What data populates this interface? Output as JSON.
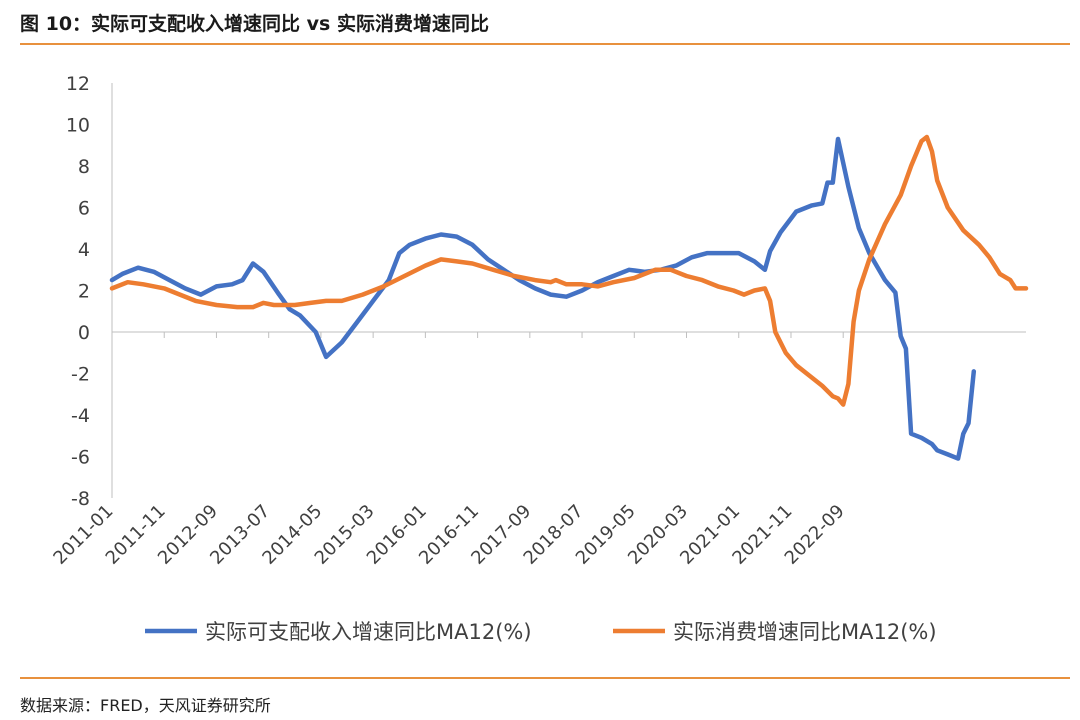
{
  "header": {
    "title": "图 10：实际可支配收入增速同比  vs  实际消费增速同比"
  },
  "footer": {
    "source": "数据来源：FRED，天风证券研究所"
  },
  "chart_data": {
    "type": "line",
    "x_tick_labels": [
      "2011-01",
      "2011-11",
      "2012-09",
      "2013-07",
      "2014-05",
      "2015-03",
      "2016-01",
      "2016-11",
      "2017-09",
      "2018-07",
      "2019-05",
      "2020-03",
      "2021-01",
      "2021-11",
      "2022-09"
    ],
    "ylim": [
      -8,
      12
    ],
    "yticks": [
      -8,
      -6,
      -4,
      -2,
      0,
      2,
      4,
      6,
      8,
      10,
      12
    ],
    "grid": false,
    "legend_position": "bottom",
    "colors": {
      "income": "#4472C4",
      "consumption": "#ED7D31",
      "accent": "#E8913D"
    },
    "series": [
      {
        "name": "实际可支配收入增速同比MA12(%)",
        "key": "income",
        "points": [
          [
            "2011-01",
            2.5
          ],
          [
            "2011-03",
            2.8
          ],
          [
            "2011-06",
            3.1
          ],
          [
            "2011-09",
            2.9
          ],
          [
            "2011-12",
            2.5
          ],
          [
            "2012-03",
            2.1
          ],
          [
            "2012-06",
            1.8
          ],
          [
            "2012-09",
            2.2
          ],
          [
            "2012-12",
            2.3
          ],
          [
            "2013-02",
            2.5
          ],
          [
            "2013-04",
            3.3
          ],
          [
            "2013-06",
            2.9
          ],
          [
            "2013-09",
            1.8
          ],
          [
            "2013-11",
            1.1
          ],
          [
            "2014-01",
            0.8
          ],
          [
            "2014-04",
            0.0
          ],
          [
            "2014-06",
            -1.2
          ],
          [
            "2014-09",
            -0.5
          ],
          [
            "2014-12",
            0.5
          ],
          [
            "2015-03",
            1.5
          ],
          [
            "2015-06",
            2.5
          ],
          [
            "2015-08",
            3.8
          ],
          [
            "2015-10",
            4.2
          ],
          [
            "2016-01",
            4.5
          ],
          [
            "2016-04",
            4.7
          ],
          [
            "2016-07",
            4.6
          ],
          [
            "2016-10",
            4.2
          ],
          [
            "2017-01",
            3.5
          ],
          [
            "2017-04",
            3.0
          ],
          [
            "2017-07",
            2.5
          ],
          [
            "2017-10",
            2.1
          ],
          [
            "2018-01",
            1.8
          ],
          [
            "2018-04",
            1.7
          ],
          [
            "2018-07",
            2.0
          ],
          [
            "2018-10",
            2.4
          ],
          [
            "2019-01",
            2.7
          ],
          [
            "2019-04",
            3.0
          ],
          [
            "2019-07",
            2.9
          ],
          [
            "2019-10",
            3.0
          ],
          [
            "2020-01",
            3.2
          ],
          [
            "2020-04",
            3.6
          ],
          [
            "2020-07",
            3.8
          ],
          [
            "2020-10",
            3.8
          ],
          [
            "2021-01",
            3.8
          ],
          [
            "2021-04",
            3.4
          ],
          [
            "2021-06",
            3.0
          ],
          [
            "2021-07",
            3.9
          ],
          [
            "2021-09",
            4.8
          ],
          [
            "2021-12",
            5.8
          ],
          [
            "2022-03",
            6.1
          ],
          [
            "2022-05",
            6.2
          ],
          [
            "2022-06",
            7.2
          ],
          [
            "2022-07",
            7.2
          ],
          [
            "2022-08",
            9.3
          ],
          [
            "2022-10",
            7.0
          ],
          [
            "2022-12",
            5.0
          ],
          [
            "2023-02",
            3.8
          ],
          [
            "2023-05",
            2.5
          ],
          [
            "2023-07",
            1.9
          ],
          [
            "2023-08",
            -0.2
          ],
          [
            "2023-09",
            -0.8
          ],
          [
            "2023-10",
            -4.9
          ],
          [
            "2023-12",
            -5.1
          ],
          [
            "2024-02",
            -5.4
          ],
          [
            "2024-03",
            -5.7
          ],
          [
            "2024-05",
            -5.9
          ],
          [
            "2024-07",
            -6.1
          ],
          [
            "2024-08",
            -4.9
          ],
          [
            "2024-09",
            -4.4
          ],
          [
            "2024-10",
            -1.9
          ]
        ]
      },
      {
        "name": "实际消费增速同比MA12(%)",
        "key": "consumption",
        "points": [
          [
            "2011-01",
            2.1
          ],
          [
            "2011-04",
            2.4
          ],
          [
            "2011-07",
            2.3
          ],
          [
            "2011-11",
            2.1
          ],
          [
            "2012-02",
            1.8
          ],
          [
            "2012-05",
            1.5
          ],
          [
            "2012-09",
            1.3
          ],
          [
            "2013-01",
            1.2
          ],
          [
            "2013-04",
            1.2
          ],
          [
            "2013-06",
            1.4
          ],
          [
            "2013-08",
            1.3
          ],
          [
            "2013-12",
            1.3
          ],
          [
            "2014-03",
            1.4
          ],
          [
            "2014-06",
            1.5
          ],
          [
            "2014-09",
            1.5
          ],
          [
            "2015-01",
            1.8
          ],
          [
            "2015-05",
            2.2
          ],
          [
            "2015-09",
            2.7
          ],
          [
            "2016-01",
            3.2
          ],
          [
            "2016-04",
            3.5
          ],
          [
            "2016-07",
            3.4
          ],
          [
            "2016-10",
            3.3
          ],
          [
            "2017-02",
            3.0
          ],
          [
            "2017-06",
            2.7
          ],
          [
            "2017-10",
            2.5
          ],
          [
            "2018-01",
            2.4
          ],
          [
            "2018-02",
            2.5
          ],
          [
            "2018-04",
            2.3
          ],
          [
            "2018-07",
            2.3
          ],
          [
            "2018-10",
            2.2
          ],
          [
            "2019-01",
            2.4
          ],
          [
            "2019-05",
            2.6
          ],
          [
            "2019-09",
            3.0
          ],
          [
            "2019-12",
            3.0
          ],
          [
            "2020-03",
            2.7
          ],
          [
            "2020-06",
            2.5
          ],
          [
            "2020-09",
            2.2
          ],
          [
            "2020-12",
            2.0
          ],
          [
            "2021-02",
            1.8
          ],
          [
            "2021-04",
            2.0
          ],
          [
            "2021-06",
            2.1
          ],
          [
            "2021-07",
            1.5
          ],
          [
            "2021-08",
            0.0
          ],
          [
            "2021-10",
            -1.0
          ],
          [
            "2021-12",
            -1.6
          ],
          [
            "2022-03",
            -2.2
          ],
          [
            "2022-05",
            -2.6
          ],
          [
            "2022-07",
            -3.1
          ],
          [
            "2022-08",
            -3.2
          ],
          [
            "2022-09",
            -3.5
          ],
          [
            "2022-10",
            -2.5
          ],
          [
            "2022-11",
            0.5
          ],
          [
            "2022-12",
            2.0
          ],
          [
            "2023-02",
            3.5
          ],
          [
            "2023-05",
            5.2
          ],
          [
            "2023-08",
            6.6
          ],
          [
            "2023-10",
            8.0
          ],
          [
            "2023-12",
            9.2
          ],
          [
            "2024-01",
            9.4
          ],
          [
            "2024-02",
            8.7
          ],
          [
            "2024-03",
            7.3
          ],
          [
            "2024-05",
            6.0
          ],
          [
            "2024-08",
            4.9
          ],
          [
            "2024-11",
            4.2
          ],
          [
            "2025-01",
            3.6
          ],
          [
            "2025-03",
            2.8
          ],
          [
            "2025-05",
            2.5
          ],
          [
            "2025-06",
            2.1
          ],
          [
            "2025-08",
            2.1
          ]
        ]
      }
    ]
  }
}
